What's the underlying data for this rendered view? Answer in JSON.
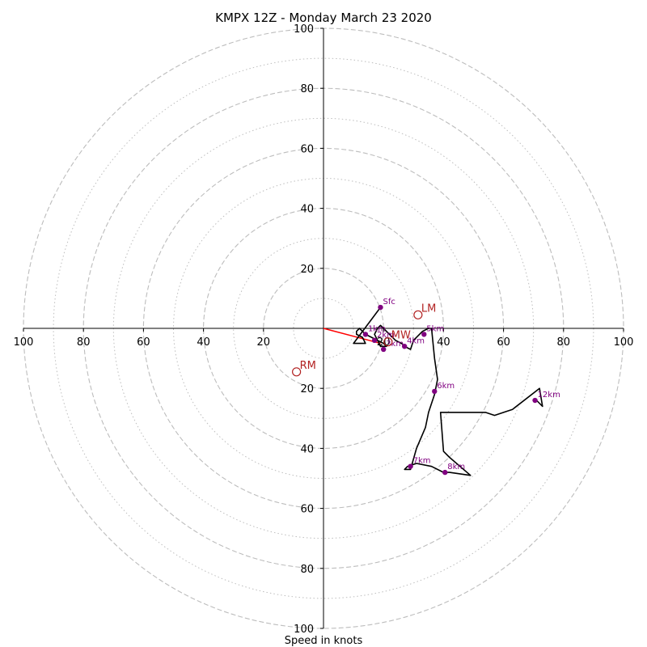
{
  "chart_data": {
    "type": "line",
    "title": "KMPX 12Z - Monday March 23 2020",
    "xlabel": "Speed in knots",
    "xlim": [
      -100,
      100
    ],
    "ylim": [
      -100,
      100
    ],
    "rings": [
      20,
      40,
      60,
      80,
      100
    ],
    "minor_rings": [
      10,
      30,
      50,
      70,
      90
    ],
    "ticks": {
      "top": [
        "100",
        "80",
        "60",
        "40",
        "20"
      ],
      "bottom": [
        "20",
        "40",
        "60",
        "80",
        "100"
      ],
      "left": [
        "100",
        "80",
        "60",
        "40",
        "20"
      ],
      "right": [
        "20",
        "40",
        "60",
        "80",
        "100"
      ]
    },
    "hodograph": {
      "color": "#000000",
      "x": [
        19,
        16,
        10,
        14,
        13,
        11,
        11,
        12,
        13,
        14,
        16,
        18,
        20,
        21,
        19,
        18,
        17,
        18,
        19,
        20,
        22,
        24,
        26,
        27,
        29,
        30,
        33,
        35,
        36,
        37,
        38,
        37,
        35,
        34,
        31,
        29,
        27,
        28,
        31,
        36,
        40,
        42,
        49,
        42,
        40,
        39,
        54,
        57,
        63,
        72,
        73,
        71
      ],
      "y": [
        7,
        3,
        -5,
        -5,
        -3,
        -2,
        -1,
        0,
        -1,
        -2,
        -3,
        -4,
        -5,
        -6,
        -6,
        -4,
        -2,
        0,
        1,
        0,
        -2,
        -4,
        -5,
        -6,
        -7,
        -4,
        -1,
        0,
        0,
        -10,
        -17,
        -22,
        -28,
        -33,
        -40,
        -47,
        -47,
        -46,
        -45,
        -46,
        -48,
        -48,
        -49,
        -43,
        -41,
        -28,
        -28,
        -29,
        -27,
        -20,
        -26,
        -24
      ]
    },
    "height_labels": [
      {
        "label": "Sfc",
        "x": 19,
        "y": 7
      },
      {
        "label": "1km",
        "x": 14,
        "y": -2
      },
      {
        "label": "2km",
        "x": 17,
        "y": -4
      },
      {
        "label": "3km",
        "x": 20,
        "y": -7
      },
      {
        "label": "4km",
        "x": 27,
        "y": -6
      },
      {
        "label": "5km",
        "x": 33.5,
        "y": -2
      },
      {
        "label": "6km",
        "x": 37,
        "y": -21
      },
      {
        "label": "7km",
        "x": 29,
        "y": -46
      },
      {
        "label": "8km",
        "x": 40.5,
        "y": -48
      },
      {
        "label": "12km",
        "x": 70.5,
        "y": -24
      }
    ],
    "height_label_color": "#800080",
    "motion_markers": [
      {
        "label": "LM",
        "x": 31.5,
        "y": 4.5
      },
      {
        "label": "RM",
        "x": -9,
        "y": -14.5
      },
      {
        "label": "MW",
        "x": 21.5,
        "y": -4.5
      }
    ],
    "motion_color": "#b22222",
    "shear_vector": {
      "from": [
        0,
        0
      ],
      "to": [
        19,
        -5
      ],
      "color": "#ff0000"
    }
  }
}
